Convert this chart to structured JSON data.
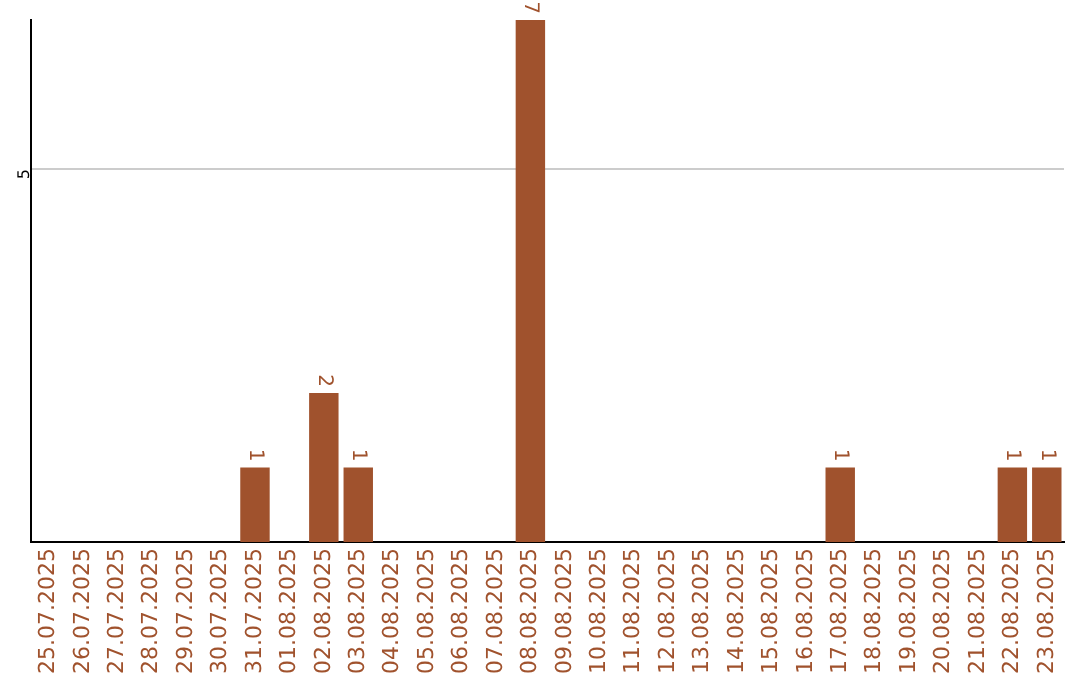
{
  "chart_data": {
    "type": "bar",
    "categories": [
      "25.07.2025",
      "26.07.2025",
      "27.07.2025",
      "28.07.2025",
      "29.07.2025",
      "30.07.2025",
      "31.07.2025",
      "01.08.2025",
      "02.08.2025",
      "03.08.2025",
      "04.08.2025",
      "05.08.2025",
      "06.08.2025",
      "07.08.2025",
      "08.08.2025",
      "09.08.2025",
      "10.08.2025",
      "11.08.2025",
      "12.08.2025",
      "13.08.2025",
      "14.08.2025",
      "15.08.2025",
      "16.08.2025",
      "17.08.2025",
      "18.08.2025",
      "19.08.2025",
      "20.08.2025",
      "21.08.2025",
      "22.08.2025",
      "23.08.2025"
    ],
    "values": [
      0,
      0,
      0,
      0,
      0,
      0,
      1,
      0,
      2,
      1,
      0,
      0,
      0,
      0,
      7,
      0,
      0,
      0,
      0,
      0,
      0,
      0,
      0,
      1,
      0,
      0,
      0,
      0,
      1,
      1
    ],
    "value_labels": [
      null,
      null,
      null,
      null,
      null,
      null,
      "1",
      null,
      "2",
      "1",
      null,
      null,
      null,
      null,
      "7",
      null,
      null,
      null,
      null,
      null,
      null,
      null,
      null,
      "1",
      null,
      null,
      null,
      null,
      "1",
      "1"
    ],
    "color": "#a0522d",
    "ylim": [
      0,
      7
    ],
    "yticks": [
      5
    ],
    "grid": "y",
    "legend": false
  }
}
